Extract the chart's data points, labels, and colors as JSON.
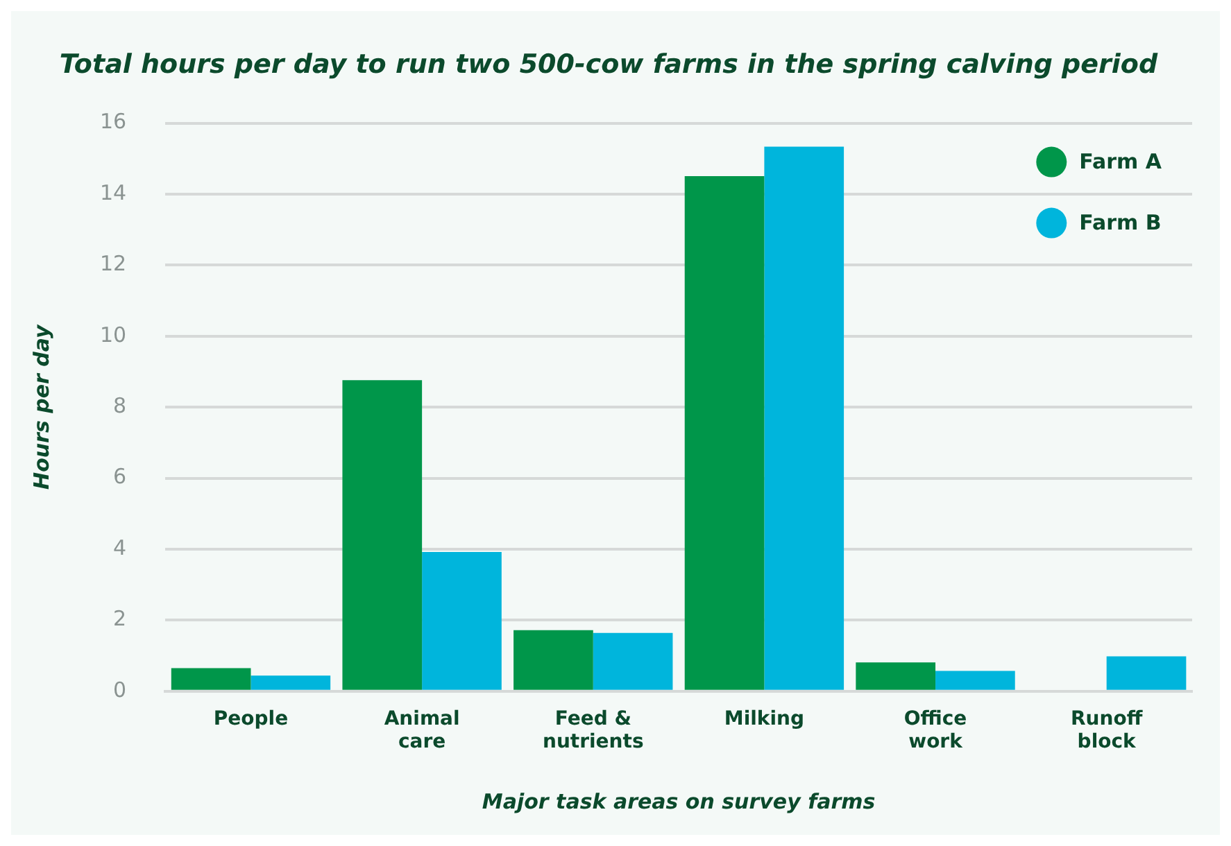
{
  "chart_data": {
    "type": "bar",
    "title": "Total hours per day to run two 500-cow farms in the spring calving period",
    "xlabel": "Major task areas on survey farms",
    "ylabel": "Hours per day",
    "categories": [
      "People",
      "Animal care",
      "Feed & nutrients",
      "Milking",
      "Office work",
      "Runoff block"
    ],
    "series": [
      {
        "name": "Farm A",
        "color": "#00964a",
        "values": [
          0.65,
          8.76,
          1.72,
          14.51,
          0.81,
          null
        ]
      },
      {
        "name": "Farm B",
        "color": "#00b5dc",
        "values": [
          0.44,
          3.92,
          1.64,
          15.34,
          0.57,
          0.98
        ]
      }
    ],
    "ylim": [
      0,
      16
    ],
    "yticks": [
      0,
      2,
      4,
      6,
      8,
      10,
      12,
      14,
      16
    ],
    "grid": "y",
    "legend": "top right"
  }
}
